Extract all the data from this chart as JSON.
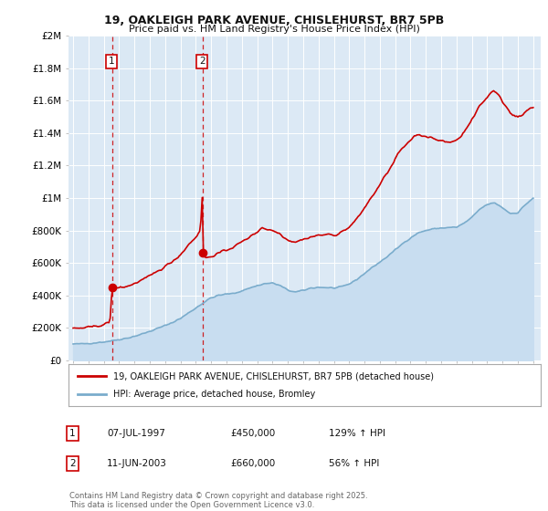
{
  "title": "19, OAKLEIGH PARK AVENUE, CHISLEHURST, BR7 5PB",
  "subtitle": "Price paid vs. HM Land Registry's House Price Index (HPI)",
  "background_color": "#ffffff",
  "plot_bg_color": "#dce9f5",
  "grid_color": "#ffffff",
  "sale1_date": 1997.54,
  "sale1_price": 450000,
  "sale1_label": "1",
  "sale2_date": 2003.45,
  "sale2_price": 660000,
  "sale2_label": "2",
  "legend_property": "19, OAKLEIGH PARK AVENUE, CHISLEHURST, BR7 5PB (detached house)",
  "legend_hpi": "HPI: Average price, detached house, Bromley",
  "annotation1": "07-JUL-1997",
  "annotation1_price": "£450,000",
  "annotation1_hpi": "129% ↑ HPI",
  "annotation2": "11-JUN-2003",
  "annotation2_price": "£660,000",
  "annotation2_hpi": "56% ↑ HPI",
  "footnote": "Contains HM Land Registry data © Crown copyright and database right 2025.\nThis data is licensed under the Open Government Licence v3.0.",
  "property_color": "#cc0000",
  "hpi_color": "#7aaccc",
  "hpi_fill_color": "#c8ddf0",
  "shade_color": "#dae8f4",
  "ylim": [
    0,
    2000000
  ],
  "xlim_start": 1994.7,
  "xlim_end": 2025.5
}
